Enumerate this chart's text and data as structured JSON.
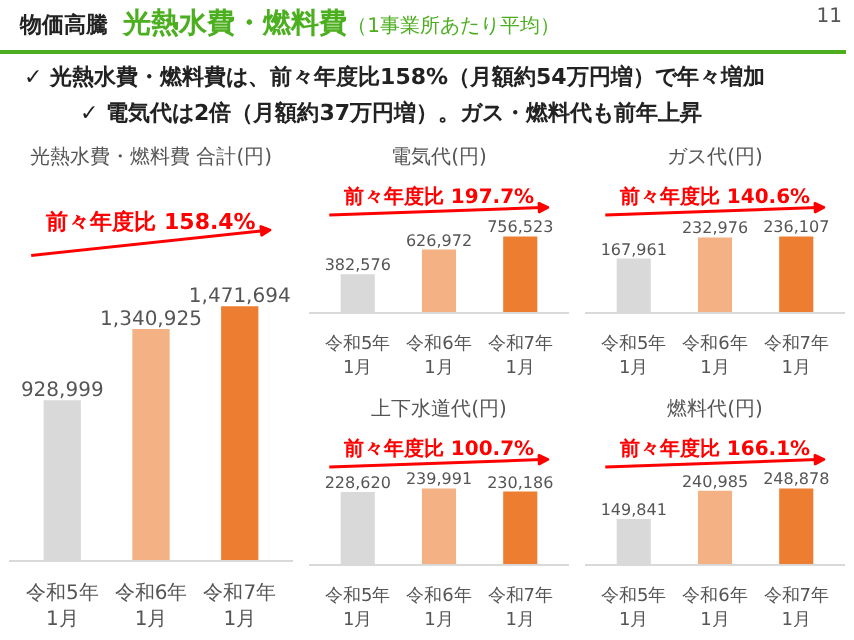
{
  "chart_data": [
    {
      "type": "bar",
      "title": "光熱水費・燃料費 合計(円)",
      "categories": [
        "令和5年1月",
        "令和6年1月",
        "令和7年1月"
      ],
      "values": [
        928999,
        1340925,
        1471694
      ],
      "value_labels": [
        "928,999",
        "1,340,925",
        "1,471,694"
      ],
      "colors": [
        "#d9d9d9",
        "#f4b183",
        "#ed7d31"
      ],
      "grid": false,
      "annotations": [
        "前々年度比 158.4%",
        "物価高騰",
        "光熱水費・燃料費",
        "（1事業所あたり平均）",
        "✓ 光熱水費・燃料費は、前々年度比158%（月額約54万円増）で年々増加",
        "✓ 電気代は2倍（月額約37万円増）。ガス・燃料代も前年上昇",
        "11"
      ]
    },
    {
      "type": "bar",
      "title": "電気代(円)",
      "categories": [
        "令和5年1月",
        "令和6年1月",
        "令和7年1月"
      ],
      "values": [
        382576,
        626972,
        756523
      ],
      "value_labels": [
        "382,576",
        "626,972",
        "756,523"
      ],
      "colors": [
        "#d9d9d9",
        "#f4b183",
        "#ed7d31"
      ],
      "grid": false,
      "annotations": [
        "前々年度比 197.7%"
      ]
    },
    {
      "type": "bar",
      "title": "ガス代(円)",
      "categories": [
        "令和5年1月",
        "令和6年1月",
        "令和7年1月"
      ],
      "values": [
        167961,
        232976,
        236107
      ],
      "value_labels": [
        "167,961",
        "232,976",
        "236,107"
      ],
      "colors": [
        "#d9d9d9",
        "#f4b183",
        "#ed7d31"
      ],
      "grid": false,
      "annotations": [
        "前々年度比 140.6%"
      ]
    },
    {
      "type": "bar",
      "title": "上下水道代(円)",
      "categories": [
        "令和5年1月",
        "令和6年1月",
        "令和7年1月"
      ],
      "values": [
        228620,
        239991,
        230186
      ],
      "value_labels": [
        "228,620",
        "239,991",
        "230,186"
      ],
      "colors": [
        "#d9d9d9",
        "#f4b183",
        "#ed7d31"
      ],
      "grid": false,
      "annotations": [
        "前々年度比 100.7%"
      ]
    },
    {
      "type": "bar",
      "title": "燃料代(円)",
      "categories": [
        "令和5年1月",
        "令和6年1月",
        "令和7年1月"
      ],
      "values": [
        149841,
        240985,
        248878
      ],
      "value_labels": [
        "149,841",
        "240,985",
        "248,878"
      ],
      "colors": [
        "#d9d9d9",
        "#f4b183",
        "#ed7d31"
      ],
      "grid": false,
      "annotations": [
        "前々年度比 166.1%"
      ]
    }
  ]
}
